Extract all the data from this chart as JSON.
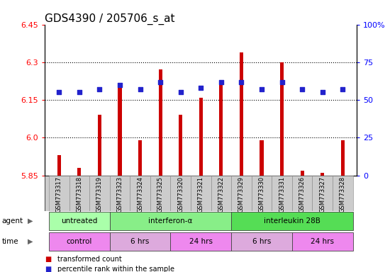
{
  "title": "GDS4390 / 205706_s_at",
  "samples": [
    "GSM773317",
    "GSM773318",
    "GSM773319",
    "GSM773323",
    "GSM773324",
    "GSM773325",
    "GSM773320",
    "GSM773321",
    "GSM773322",
    "GSM773329",
    "GSM773330",
    "GSM773331",
    "GSM773326",
    "GSM773327",
    "GSM773328"
  ],
  "red_values": [
    5.93,
    5.88,
    6.09,
    6.21,
    5.99,
    6.27,
    6.09,
    6.16,
    6.22,
    6.34,
    5.99,
    6.3,
    5.87,
    5.86,
    5.99
  ],
  "blue_values": [
    55,
    55,
    57,
    60,
    57,
    62,
    55,
    58,
    62,
    62,
    57,
    62,
    57,
    55,
    57
  ],
  "ylim_left": [
    5.85,
    6.45
  ],
  "ylim_right": [
    0,
    100
  ],
  "yticks_left": [
    5.85,
    6.0,
    6.15,
    6.3,
    6.45
  ],
  "yticks_right": [
    0,
    25,
    50,
    75,
    100
  ],
  "ytick_labels_right": [
    "0",
    "25",
    "50",
    "75",
    "100%"
  ],
  "hlines": [
    6.0,
    6.15,
    6.3
  ],
  "bar_color": "#CC0000",
  "dot_color": "#2222CC",
  "agent_groups": [
    {
      "label": "untreated",
      "start": 0,
      "end": 3,
      "color": "#AAFFAA"
    },
    {
      "label": "interferon-α",
      "start": 3,
      "end": 9,
      "color": "#88EE88"
    },
    {
      "label": "interleukin 28B",
      "start": 9,
      "end": 15,
      "color": "#55DD55"
    }
  ],
  "time_groups": [
    {
      "label": "control",
      "start": 0,
      "end": 3,
      "color": "#EE88EE"
    },
    {
      "label": "6 hrs",
      "start": 3,
      "end": 6,
      "color": "#DDAADD"
    },
    {
      "label": "24 hrs",
      "start": 6,
      "end": 9,
      "color": "#EE88EE"
    },
    {
      "label": "6 hrs",
      "start": 9,
      "end": 12,
      "color": "#DDAADD"
    },
    {
      "label": "24 hrs",
      "start": 12,
      "end": 15,
      "color": "#EE88EE"
    }
  ],
  "legend_items": [
    {
      "label": "transformed count",
      "color": "#CC0000"
    },
    {
      "label": "percentile rank within the sample",
      "color": "#2222CC"
    }
  ],
  "background_color": "#FFFFFF",
  "plot_bg_color": "#FFFFFF",
  "title_fontsize": 11,
  "tick_fontsize": 8,
  "label_fontsize": 8,
  "bar_width": 0.18,
  "dot_size": 16
}
